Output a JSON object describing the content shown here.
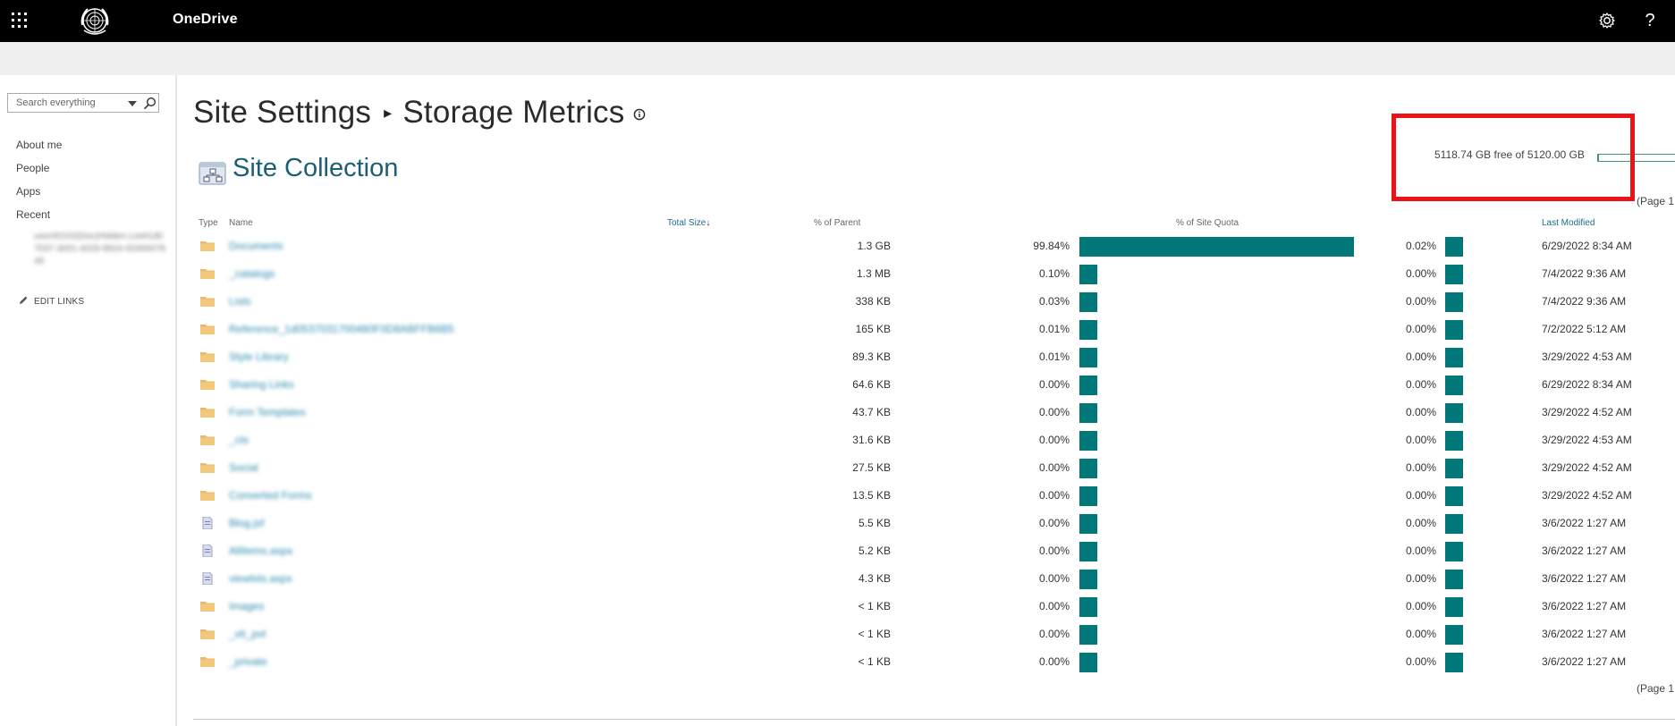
{
  "topbar": {
    "app_name": "OneDrive",
    "logo_icon": "un-emblem-icon",
    "settings_icon": "gear-icon",
    "help_label": "?"
  },
  "leftnav": {
    "search_placeholder": "Search everything",
    "items": [
      {
        "label": "About me"
      },
      {
        "label": "People"
      },
      {
        "label": "Apps"
      },
      {
        "label": "Recent"
      }
    ],
    "recent_sub": "user00102(Doc)Hidden.List#1d07037-3001-4029-9924-0030007849",
    "edit_links": "EDIT LINKS"
  },
  "page": {
    "breadcrumb_parent": "Site Settings",
    "breadcrumb_sep": "▸",
    "title": "Storage Metrics",
    "section_title": "Site Collection",
    "quota_text": "5118.74 GB free of 5120.00 GB",
    "quota_used_fraction": 0.0002,
    "paging_top": "(Page 1",
    "paging_bottom": "(Page 1"
  },
  "colors": {
    "bar": "#00787a",
    "link": "#1a6c8a",
    "highlight": "#e8141a",
    "quota_bar": "#3e9a6a"
  },
  "table": {
    "headers": {
      "type": "Type",
      "name": "Name",
      "size": "Total Size",
      "size_sort": "↓",
      "parent": "% of Parent",
      "quota": "% of Site Quota",
      "modified": "Last Modified"
    },
    "rows": [
      {
        "icon": "folder",
        "name": "Documents",
        "size": "1.3 GB",
        "pct_parent": "99.84%",
        "parent_value": 99.84,
        "pct_quota": "0.02%",
        "modified": "6/29/2022 8:34 AM"
      },
      {
        "icon": "folder",
        "name": "_catalogs",
        "size": "1.3 MB",
        "pct_parent": "0.10%",
        "parent_value": 0.1,
        "pct_quota": "0.00%",
        "modified": "7/4/2022 9:36 AM"
      },
      {
        "icon": "folder",
        "name": "Lists",
        "size": "338 KB",
        "pct_parent": "0.03%",
        "parent_value": 0.03,
        "pct_quota": "0.00%",
        "modified": "7/4/2022 9:36 AM"
      },
      {
        "icon": "folder",
        "name": "Reference_1d0537031700480F0D8ABFFB6B5",
        "size": "165 KB",
        "pct_parent": "0.01%",
        "parent_value": 0.01,
        "pct_quota": "0.00%",
        "modified": "7/2/2022 5:12 AM"
      },
      {
        "icon": "folder",
        "name": "Style Library",
        "size": "89.3 KB",
        "pct_parent": "0.01%",
        "parent_value": 0.01,
        "pct_quota": "0.00%",
        "modified": "3/29/2022 4:53 AM"
      },
      {
        "icon": "folder",
        "name": "Sharing Links",
        "size": "64.6 KB",
        "pct_parent": "0.00%",
        "parent_value": 0.0,
        "pct_quota": "0.00%",
        "modified": "6/29/2022 8:34 AM"
      },
      {
        "icon": "folder",
        "name": "Form Templates",
        "size": "43.7 KB",
        "pct_parent": "0.00%",
        "parent_value": 0.0,
        "pct_quota": "0.00%",
        "modified": "3/29/2022 4:52 AM"
      },
      {
        "icon": "folder",
        "name": "_cts",
        "size": "31.6 KB",
        "pct_parent": "0.00%",
        "parent_value": 0.0,
        "pct_quota": "0.00%",
        "modified": "3/29/2022 4:53 AM"
      },
      {
        "icon": "folder",
        "name": "Social",
        "size": "27.5 KB",
        "pct_parent": "0.00%",
        "parent_value": 0.0,
        "pct_quota": "0.00%",
        "modified": "3/29/2022 4:52 AM"
      },
      {
        "icon": "folder",
        "name": "Converted Forms",
        "size": "13.5 KB",
        "pct_parent": "0.00%",
        "parent_value": 0.0,
        "pct_quota": "0.00%",
        "modified": "3/29/2022 4:52 AM"
      },
      {
        "icon": "file",
        "name": "Blog.jsf",
        "size": "5.5 KB",
        "pct_parent": "0.00%",
        "parent_value": 0.0,
        "pct_quota": "0.00%",
        "modified": "3/6/2022 1:27 AM"
      },
      {
        "icon": "file",
        "name": "AllItems.aspx",
        "size": "5.2 KB",
        "pct_parent": "0.00%",
        "parent_value": 0.0,
        "pct_quota": "0.00%",
        "modified": "3/6/2022 1:27 AM"
      },
      {
        "icon": "file",
        "name": "viewlsts.aspx",
        "size": "4.3 KB",
        "pct_parent": "0.00%",
        "parent_value": 0.0,
        "pct_quota": "0.00%",
        "modified": "3/6/2022 1:27 AM"
      },
      {
        "icon": "folder",
        "name": "Images",
        "size": "< 1 KB",
        "pct_parent": "0.00%",
        "parent_value": 0.0,
        "pct_quota": "0.00%",
        "modified": "3/6/2022 1:27 AM"
      },
      {
        "icon": "folder",
        "name": "_vti_pvt",
        "size": "< 1 KB",
        "pct_parent": "0.00%",
        "parent_value": 0.0,
        "pct_quota": "0.00%",
        "modified": "3/6/2022 1:27 AM"
      },
      {
        "icon": "folder",
        "name": "_private",
        "size": "< 1 KB",
        "pct_parent": "0.00%",
        "parent_value": 0.0,
        "pct_quota": "0.00%",
        "modified": "3/6/2022 1:27 AM"
      }
    ]
  }
}
